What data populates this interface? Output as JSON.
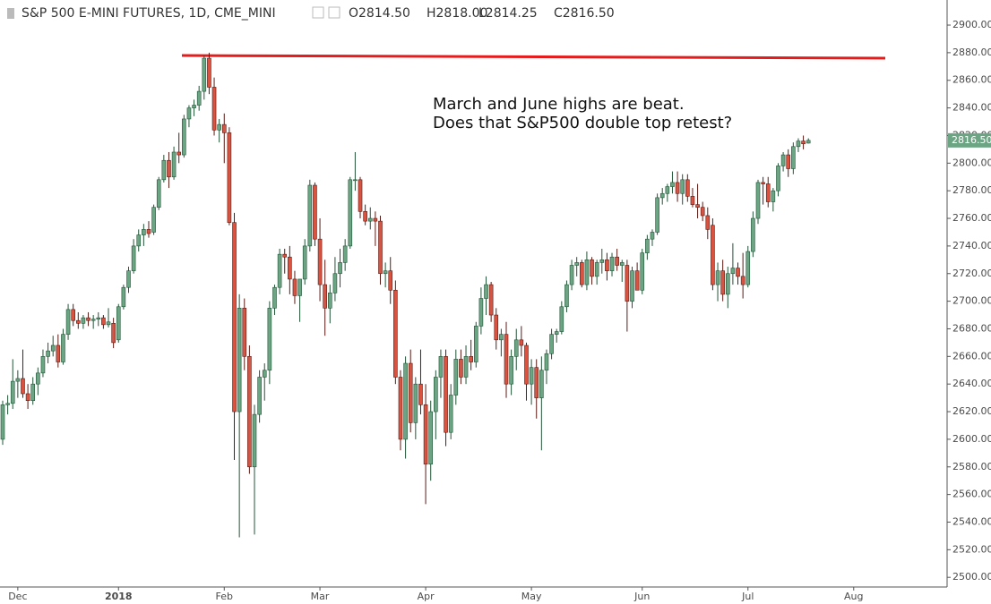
{
  "header": {
    "title": "S&P 500 E-MINI FUTURES, 1D, CME_MINI",
    "open": "O2814.50",
    "high": "H2818.00",
    "low": "L2814.25",
    "close": "C2816.50"
  },
  "chart_data": {
    "type": "candlestick",
    "annotation": [
      "March and June highs are beat.",
      "Does that S&P500 double top retest?"
    ],
    "up_color": "#6ba583",
    "down_color": "#d75442",
    "up_border": "#225437",
    "down_border": "#5b1a13",
    "last_price": {
      "value": 2816.5,
      "label": "2816.50"
    },
    "ylim": [
      2493,
      2910
    ],
    "yticks": [
      {
        "value": 2500,
        "label": "2500.00"
      },
      {
        "value": 2520,
        "label": "2520.00"
      },
      {
        "value": 2540,
        "label": "2540.00"
      },
      {
        "value": 2560,
        "label": "2560.00"
      },
      {
        "value": 2580,
        "label": "2580.00"
      },
      {
        "value": 2600,
        "label": "2600.00"
      },
      {
        "value": 2620,
        "label": "2620.00"
      },
      {
        "value": 2640,
        "label": "2640.00"
      },
      {
        "value": 2660,
        "label": "2660.00"
      },
      {
        "value": 2680,
        "label": "2680.00"
      },
      {
        "value": 2700,
        "label": "2700.00"
      },
      {
        "value": 2720,
        "label": "2720.00"
      },
      {
        "value": 2740,
        "label": "2740.00"
      },
      {
        "value": 2760,
        "label": "2760.00"
      },
      {
        "value": 2780,
        "label": "2780.00"
      },
      {
        "value": 2800,
        "label": "2800.00"
      },
      {
        "value": 2820,
        "label": "2820.00"
      },
      {
        "value": 2840,
        "label": "2840.00"
      },
      {
        "value": 2860,
        "label": "2860.00"
      },
      {
        "value": 2880,
        "label": "2880.00"
      },
      {
        "value": 2900,
        "label": "2900.00"
      }
    ],
    "xticks": [
      {
        "value": 3,
        "label": "Dec"
      },
      {
        "value": 23,
        "label": "2018"
      },
      {
        "value": 44,
        "label": "Feb"
      },
      {
        "value": 63,
        "label": "Mar"
      },
      {
        "value": 84,
        "label": "Apr"
      },
      {
        "value": 105,
        "label": "May"
      },
      {
        "value": 127,
        "label": "Jun"
      },
      {
        "value": 148,
        "label": "Jul"
      },
      {
        "value": 169,
        "label": "Aug"
      }
    ],
    "ohlc": [
      [
        2600,
        2628,
        2596,
        2625
      ],
      [
        2625,
        2632,
        2618,
        2626
      ],
      [
        2626,
        2658,
        2622,
        2642
      ],
      [
        2642,
        2650,
        2630,
        2644
      ],
      [
        2644,
        2665,
        2630,
        2633
      ],
      [
        2633,
        2640,
        2622,
        2628
      ],
      [
        2628,
        2645,
        2625,
        2640
      ],
      [
        2640,
        2652,
        2632,
        2648
      ],
      [
        2648,
        2665,
        2645,
        2660
      ],
      [
        2660,
        2670,
        2655,
        2664
      ],
      [
        2664,
        2675,
        2660,
        2668
      ],
      [
        2668,
        2676,
        2652,
        2656
      ],
      [
        2656,
        2680,
        2654,
        2676
      ],
      [
        2676,
        2698,
        2672,
        2694
      ],
      [
        2694,
        2698,
        2682,
        2686
      ],
      [
        2686,
        2692,
        2680,
        2684
      ],
      [
        2684,
        2690,
        2680,
        2688
      ],
      [
        2688,
        2692,
        2682,
        2686
      ],
      [
        2686,
        2690,
        2680,
        2687
      ],
      [
        2687,
        2692,
        2682,
        2688
      ],
      [
        2688,
        2690,
        2680,
        2683
      ],
      [
        2683,
        2695,
        2681,
        2685
      ],
      [
        2684,
        2688,
        2666,
        2670
      ],
      [
        2672,
        2698,
        2670,
        2696
      ],
      [
        2696,
        2712,
        2694,
        2710
      ],
      [
        2710,
        2725,
        2706,
        2722
      ],
      [
        2722,
        2745,
        2720,
        2740
      ],
      [
        2740,
        2752,
        2736,
        2748
      ],
      [
        2748,
        2756,
        2740,
        2752
      ],
      [
        2752,
        2758,
        2746,
        2749
      ],
      [
        2750,
        2770,
        2748,
        2768
      ],
      [
        2768,
        2790,
        2766,
        2788
      ],
      [
        2788,
        2806,
        2786,
        2802
      ],
      [
        2802,
        2808,
        2782,
        2790
      ],
      [
        2790,
        2812,
        2788,
        2808
      ],
      [
        2808,
        2822,
        2800,
        2806
      ],
      [
        2806,
        2835,
        2804,
        2832
      ],
      [
        2832,
        2842,
        2826,
        2840
      ],
      [
        2840,
        2846,
        2834,
        2842
      ],
      [
        2842,
        2856,
        2838,
        2852
      ],
      [
        2852,
        2878,
        2846,
        2876
      ],
      [
        2876,
        2880,
        2850,
        2855
      ],
      [
        2855,
        2862,
        2820,
        2824
      ],
      [
        2824,
        2832,
        2815,
        2828
      ],
      [
        2828,
        2836,
        2800,
        2822
      ],
      [
        2822,
        2826,
        2755,
        2757
      ],
      [
        2757,
        2764,
        2585,
        2620
      ],
      [
        2620,
        2705,
        2529,
        2695
      ],
      [
        2695,
        2702,
        2650,
        2660
      ],
      [
        2660,
        2668,
        2575,
        2580
      ],
      [
        2580,
        2625,
        2531,
        2618
      ],
      [
        2618,
        2650,
        2612,
        2645
      ],
      [
        2645,
        2655,
        2628,
        2650
      ],
      [
        2650,
        2700,
        2640,
        2695
      ],
      [
        2695,
        2712,
        2690,
        2710
      ],
      [
        2710,
        2738,
        2705,
        2734
      ],
      [
        2734,
        2738,
        2720,
        2732
      ],
      [
        2732,
        2740,
        2705,
        2716
      ],
      [
        2716,
        2722,
        2698,
        2704
      ],
      [
        2704,
        2712,
        2685,
        2716
      ],
      [
        2716,
        2745,
        2712,
        2740
      ],
      [
        2740,
        2788,
        2736,
        2784
      ],
      [
        2784,
        2786,
        2740,
        2745
      ],
      [
        2745,
        2760,
        2700,
        2712
      ],
      [
        2712,
        2730,
        2675,
        2695
      ],
      [
        2695,
        2712,
        2684,
        2706
      ],
      [
        2706,
        2732,
        2700,
        2720
      ],
      [
        2720,
        2738,
        2710,
        2728
      ],
      [
        2728,
        2745,
        2722,
        2740
      ],
      [
        2740,
        2790,
        2738,
        2788
      ],
      [
        2788,
        2808,
        2780,
        2788
      ],
      [
        2788,
        2790,
        2760,
        2765
      ],
      [
        2765,
        2770,
        2755,
        2758
      ],
      [
        2758,
        2768,
        2752,
        2760
      ],
      [
        2760,
        2765,
        2740,
        2758
      ],
      [
        2758,
        2762,
        2712,
        2720
      ],
      [
        2720,
        2728,
        2710,
        2722
      ],
      [
        2722,
        2732,
        2698,
        2708
      ],
      [
        2708,
        2715,
        2640,
        2645
      ],
      [
        2645,
        2650,
        2592,
        2600
      ],
      [
        2600,
        2660,
        2586,
        2655
      ],
      [
        2655,
        2665,
        2605,
        2612
      ],
      [
        2612,
        2645,
        2600,
        2640
      ],
      [
        2640,
        2665,
        2618,
        2625
      ],
      [
        2625,
        2640,
        2553,
        2582
      ],
      [
        2582,
        2628,
        2570,
        2620
      ],
      [
        2620,
        2650,
        2600,
        2645
      ],
      [
        2645,
        2665,
        2630,
        2660
      ],
      [
        2660,
        2665,
        2595,
        2605
      ],
      [
        2605,
        2640,
        2600,
        2632
      ],
      [
        2632,
        2665,
        2625,
        2658
      ],
      [
        2658,
        2665,
        2640,
        2645
      ],
      [
        2645,
        2668,
        2640,
        2660
      ],
      [
        2660,
        2672,
        2650,
        2656
      ],
      [
        2656,
        2685,
        2652,
        2682
      ],
      [
        2682,
        2710,
        2676,
        2702
      ],
      [
        2702,
        2718,
        2690,
        2712
      ],
      [
        2712,
        2714,
        2685,
        2690
      ],
      [
        2690,
        2695,
        2665,
        2672
      ],
      [
        2672,
        2680,
        2660,
        2676
      ],
      [
        2676,
        2685,
        2630,
        2640
      ],
      [
        2640,
        2665,
        2632,
        2660
      ],
      [
        2660,
        2680,
        2650,
        2672
      ],
      [
        2672,
        2682,
        2660,
        2668
      ],
      [
        2668,
        2670,
        2628,
        2640
      ],
      [
        2640,
        2658,
        2625,
        2652
      ],
      [
        2652,
        2658,
        2615,
        2630
      ],
      [
        2630,
        2660,
        2592,
        2650
      ],
      [
        2650,
        2665,
        2640,
        2662
      ],
      [
        2662,
        2680,
        2658,
        2676
      ],
      [
        2676,
        2680,
        2670,
        2678
      ],
      [
        2678,
        2700,
        2676,
        2696
      ],
      [
        2696,
        2715,
        2692,
        2712
      ],
      [
        2712,
        2730,
        2708,
        2726
      ],
      [
        2726,
        2732,
        2718,
        2728
      ],
      [
        2728,
        2730,
        2710,
        2712
      ],
      [
        2712,
        2736,
        2708,
        2730
      ],
      [
        2730,
        2732,
        2712,
        2718
      ],
      [
        2718,
        2730,
        2712,
        2728
      ],
      [
        2728,
        2738,
        2720,
        2730
      ],
      [
        2730,
        2735,
        2715,
        2722
      ],
      [
        2722,
        2735,
        2718,
        2732
      ],
      [
        2732,
        2738,
        2722,
        2726
      ],
      [
        2726,
        2730,
        2714,
        2728
      ],
      [
        2726,
        2730,
        2678,
        2700
      ],
      [
        2700,
        2725,
        2695,
        2722
      ],
      [
        2722,
        2728,
        2710,
        2708
      ],
      [
        2708,
        2738,
        2705,
        2735
      ],
      [
        2735,
        2748,
        2730,
        2745
      ],
      [
        2745,
        2752,
        2740,
        2750
      ],
      [
        2750,
        2778,
        2748,
        2775
      ],
      [
        2775,
        2782,
        2770,
        2778
      ],
      [
        2778,
        2785,
        2772,
        2783
      ],
      [
        2783,
        2794,
        2778,
        2786
      ],
      [
        2786,
        2794,
        2772,
        2778
      ],
      [
        2778,
        2792,
        2770,
        2788
      ],
      [
        2788,
        2792,
        2772,
        2776
      ],
      [
        2776,
        2782,
        2768,
        2770
      ],
      [
        2770,
        2785,
        2760,
        2768
      ],
      [
        2768,
        2772,
        2758,
        2762
      ],
      [
        2762,
        2768,
        2745,
        2752
      ],
      [
        2755,
        2760,
        2708,
        2712
      ],
      [
        2712,
        2728,
        2700,
        2722
      ],
      [
        2722,
        2730,
        2700,
        2705
      ],
      [
        2705,
        2725,
        2695,
        2720
      ],
      [
        2720,
        2742,
        2712,
        2724
      ],
      [
        2724,
        2728,
        2712,
        2718
      ],
      [
        2718,
        2735,
        2702,
        2712
      ],
      [
        2712,
        2740,
        2710,
        2736
      ],
      [
        2736,
        2765,
        2732,
        2760
      ],
      [
        2760,
        2788,
        2756,
        2786
      ],
      [
        2786,
        2790,
        2770,
        2785
      ],
      [
        2785,
        2790,
        2768,
        2772
      ],
      [
        2772,
        2782,
        2765,
        2780
      ],
      [
        2780,
        2800,
        2776,
        2798
      ],
      [
        2798,
        2808,
        2794,
        2806
      ],
      [
        2806,
        2810,
        2790,
        2796
      ],
      [
        2796,
        2815,
        2792,
        2812
      ],
      [
        2812,
        2818,
        2808,
        2816
      ],
      [
        2816,
        2820,
        2810,
        2814
      ],
      [
        2814.5,
        2818,
        2814.25,
        2816.5
      ]
    ]
  }
}
